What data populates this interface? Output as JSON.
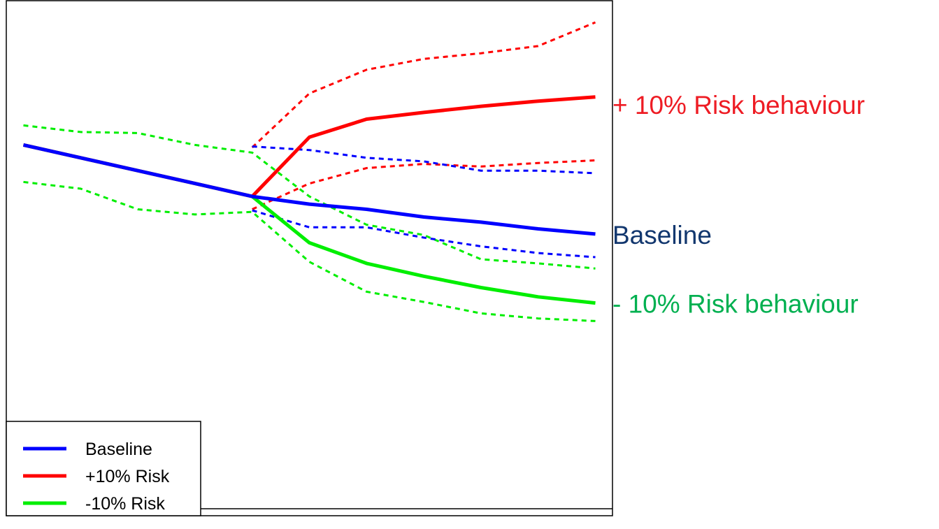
{
  "chart_data": {
    "type": "line",
    "title": "",
    "xlabel": "",
    "ylabel": "",
    "x": [
      0,
      1,
      2,
      3,
      4,
      5,
      6,
      7,
      8,
      9,
      10
    ],
    "xlim": [
      -0.3,
      10.3
    ],
    "ylim": [
      0,
      100
    ],
    "grid": false,
    "legend_position": "bottom-left",
    "series": [
      {
        "name": "Baseline",
        "key": "baseline",
        "color": "#0000ff",
        "values": [
          72,
          69.5,
          67,
          64.5,
          62,
          60.5,
          59.5,
          58,
          57,
          55.7,
          54.7
        ],
        "lower": [
          null,
          null,
          null,
          null,
          59.3,
          56,
          56,
          54,
          52.3,
          51,
          50.2
        ],
        "upper": [
          null,
          null,
          null,
          null,
          71.7,
          71,
          69.5,
          68.8,
          67,
          67,
          66.5
        ]
      },
      {
        "name": "+10% Risk",
        "key": "plus10",
        "color": "#ff0000",
        "values": [
          72,
          69.5,
          67,
          64.5,
          62,
          73.5,
          77,
          78.3,
          79.5,
          80.5,
          81.3
        ],
        "lower": [
          null,
          null,
          null,
          null,
          59.5,
          64.5,
          67.5,
          68.3,
          67.8,
          68.5,
          69
        ],
        "upper": [
          null,
          null,
          null,
          null,
          71.5,
          82,
          86.6,
          88.7,
          89.8,
          91.2,
          95.8
        ]
      },
      {
        "name": "-10% Risk",
        "key": "minus10",
        "color": "#00ee00",
        "values": [
          72,
          69.5,
          67,
          64.5,
          62,
          53,
          49,
          46.5,
          44.3,
          42.5,
          41.3
        ],
        "lower": [
          64.8,
          63.5,
          59.5,
          58.5,
          59,
          49.3,
          43.5,
          41.5,
          39.3,
          38.3,
          37.8
        ],
        "upper": [
          75.8,
          74.5,
          74.3,
          72,
          70.5,
          62,
          56.5,
          54.5,
          49.8,
          49,
          48
        ]
      }
    ],
    "annotations": [
      {
        "key": "plus10",
        "text": "+ 10% Risk behaviour",
        "color": "#ee1c24"
      },
      {
        "key": "baseline",
        "text": "Baseline",
        "color": "#12376e"
      },
      {
        "key": "minus10",
        "text": "- 10% Risk behaviour",
        "color": "#00b050"
      }
    ],
    "legend": [
      {
        "key": "baseline",
        "label": "Baseline",
        "color": "#0000ff"
      },
      {
        "key": "plus10",
        "label": "+10% Risk",
        "color": "#ff0000"
      },
      {
        "key": "minus10",
        "label": "-10% Risk",
        "color": "#00ee00"
      }
    ]
  }
}
